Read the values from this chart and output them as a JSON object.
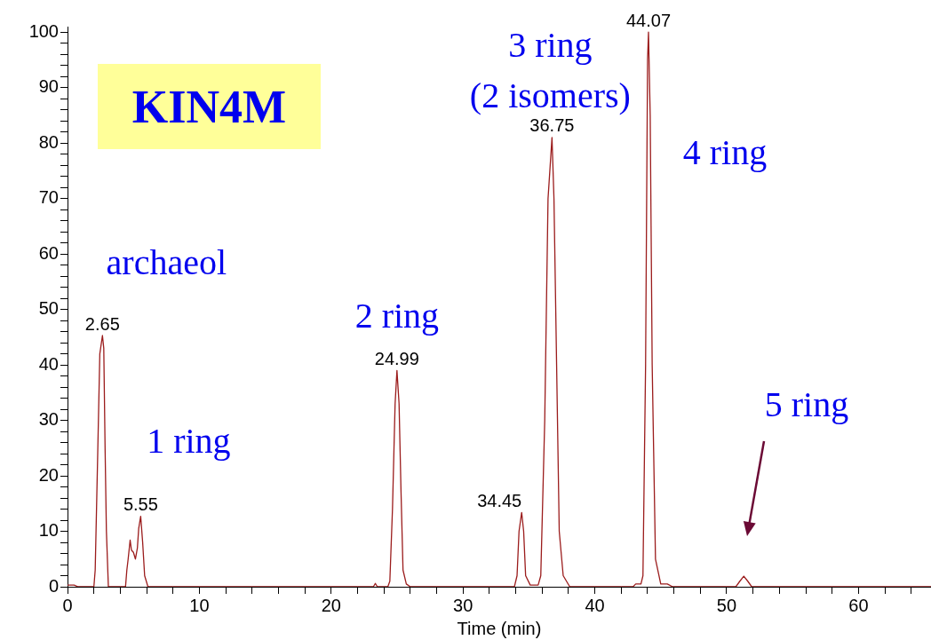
{
  "chart_data": {
    "type": "line",
    "xlabel": "Time (min)",
    "color": "#9b1c1c",
    "grid": false,
    "legend": false,
    "marker": "none",
    "line_style": "solid",
    "xlim": [
      0,
      65.5
    ],
    "ylim": [
      0,
      101
    ],
    "xticks": [
      0,
      {
        "value": 2,
        "label": null
      },
      {
        "value": 4,
        "label": null
      },
      {
        "value": 6,
        "label": null
      },
      {
        "value": 8,
        "label": null
      },
      10,
      {
        "value": 12,
        "label": null
      },
      {
        "value": 14,
        "label": null
      },
      {
        "value": 16,
        "label": null
      },
      {
        "value": 18,
        "label": null
      },
      20,
      {
        "value": 22,
        "label": null
      },
      {
        "value": 24,
        "label": null
      },
      {
        "value": 26,
        "label": null
      },
      {
        "value": 28,
        "label": null
      },
      30,
      {
        "value": 32,
        "label": null
      },
      {
        "value": 34,
        "label": null
      },
      {
        "value": 36,
        "label": null
      },
      {
        "value": 38,
        "label": null
      },
      40,
      {
        "value": 42,
        "label": null
      },
      {
        "value": 44,
        "label": null
      },
      {
        "value": 46,
        "label": null
      },
      {
        "value": 48,
        "label": null
      },
      50,
      {
        "value": 52,
        "label": null
      },
      {
        "value": 54,
        "label": null
      },
      {
        "value": 56,
        "label": null
      },
      {
        "value": 58,
        "label": null
      },
      60,
      {
        "value": 62,
        "label": null
      },
      {
        "value": 64,
        "label": null
      }
    ],
    "yticks": [
      0,
      {
        "value": 2,
        "label": null
      },
      {
        "value": 4,
        "label": null
      },
      {
        "value": 6,
        "label": null
      },
      {
        "value": 8,
        "label": null
      },
      10,
      {
        "value": 12,
        "label": null
      },
      {
        "value": 14,
        "label": null
      },
      {
        "value": 16,
        "label": null
      },
      {
        "value": 18,
        "label": null
      },
      20,
      {
        "value": 22,
        "label": null
      },
      {
        "value": 24,
        "label": null
      },
      {
        "value": 26,
        "label": null
      },
      {
        "value": 28,
        "label": null
      },
      30,
      {
        "value": 32,
        "label": null
      },
      {
        "value": 34,
        "label": null
      },
      {
        "value": 36,
        "label": null
      },
      {
        "value": 38,
        "label": null
      },
      40,
      {
        "value": 42,
        "label": null
      },
      {
        "value": 44,
        "label": null
      },
      {
        "value": 46,
        "label": null
      },
      {
        "value": 48,
        "label": null
      },
      50,
      {
        "value": 52,
        "label": null
      },
      {
        "value": 54,
        "label": null
      },
      {
        "value": 56,
        "label": null
      },
      {
        "value": 58,
        "label": null
      },
      60,
      {
        "value": 62,
        "label": null
      },
      {
        "value": 64,
        "label": null
      },
      {
        "value": 66,
        "label": null
      },
      {
        "value": 68,
        "label": null
      },
      70,
      {
        "value": 72,
        "label": null
      },
      {
        "value": 74,
        "label": null
      },
      {
        "value": 76,
        "label": null
      },
      {
        "value": 78,
        "label": null
      },
      80,
      {
        "value": 82,
        "label": null
      },
      {
        "value": 84,
        "label": null
      },
      {
        "value": 86,
        "label": null
      },
      {
        "value": 88,
        "label": null
      },
      90,
      {
        "value": 92,
        "label": null
      },
      {
        "value": 94,
        "label": null
      },
      {
        "value": 96,
        "label": null
      },
      {
        "value": 98,
        "label": null
      },
      100
    ],
    "x": [
      0,
      0.2,
      0.5,
      0.8,
      2.0,
      2.1,
      2.3,
      2.45,
      2.65,
      2.75,
      2.85,
      2.95,
      3.1,
      4.4,
      4.5,
      4.6,
      4.75,
      4.85,
      5.0,
      5.15,
      5.3,
      5.4,
      5.55,
      5.7,
      5.85,
      6.1,
      23.2,
      23.35,
      23.5,
      24.3,
      24.45,
      24.65,
      24.85,
      24.99,
      25.15,
      25.3,
      25.45,
      25.7,
      26.0,
      33.9,
      34.1,
      34.25,
      34.45,
      34.6,
      34.75,
      35.1,
      35.7,
      35.9,
      36.2,
      36.45,
      36.75,
      36.9,
      37.1,
      37.3,
      37.6,
      38.1,
      42.9,
      43.1,
      43.5,
      43.65,
      43.85,
      44.0,
      44.07,
      44.2,
      44.35,
      44.6,
      45.0,
      45.5,
      45.9,
      50.7,
      51.0,
      51.3,
      51.6,
      51.9,
      65.5
    ],
    "values": [
      0.3,
      0.3,
      0.3,
      0,
      0,
      3,
      25,
      42,
      45.3,
      43,
      25,
      10,
      0,
      0,
      3,
      5,
      8.4,
      6.6,
      6.2,
      5,
      7,
      10.5,
      12.7,
      8,
      2,
      0,
      0,
      0.6,
      0,
      0,
      1,
      14,
      33,
      39,
      33,
      17,
      3,
      0.5,
      0,
      0,
      2,
      10,
      13.4,
      10,
      2,
      0.3,
      0.3,
      2,
      30,
      70,
      81,
      70,
      40,
      10,
      2,
      0,
      0,
      0.5,
      0.5,
      2,
      40,
      95,
      100,
      85,
      40,
      5,
      0.5,
      0.5,
      0,
      0,
      1,
      1.9,
      1,
      0,
      0
    ],
    "annotations": [
      "KIN4M",
      {
        "text": "2.65",
        "x": 2.65,
        "y": 45.3
      },
      {
        "text": "5.55",
        "x": 5.55,
        "y": 12.7
      },
      {
        "text": "24.99",
        "x": 24.99,
        "y": 39
      },
      {
        "text": "34.45",
        "x": 34.45,
        "y": 13.4
      },
      {
        "text": "36.75",
        "x": 36.75,
        "y": 81
      },
      {
        "text": "44.07",
        "x": 44.07,
        "y": 100
      },
      {
        "text": "archaeol",
        "x": 2.65,
        "y": 45.3
      },
      {
        "text": "1 ring",
        "x": 5.55,
        "y": 12.7
      },
      {
        "text": "2 ring",
        "x": 24.99,
        "y": 39
      },
      {
        "text": "3 ring\n(2 isomers)",
        "x": 36.75,
        "y": 81
      },
      {
        "text": "4 ring",
        "x": 44.07,
        "y": 100
      },
      "5 ring"
    ]
  }
}
